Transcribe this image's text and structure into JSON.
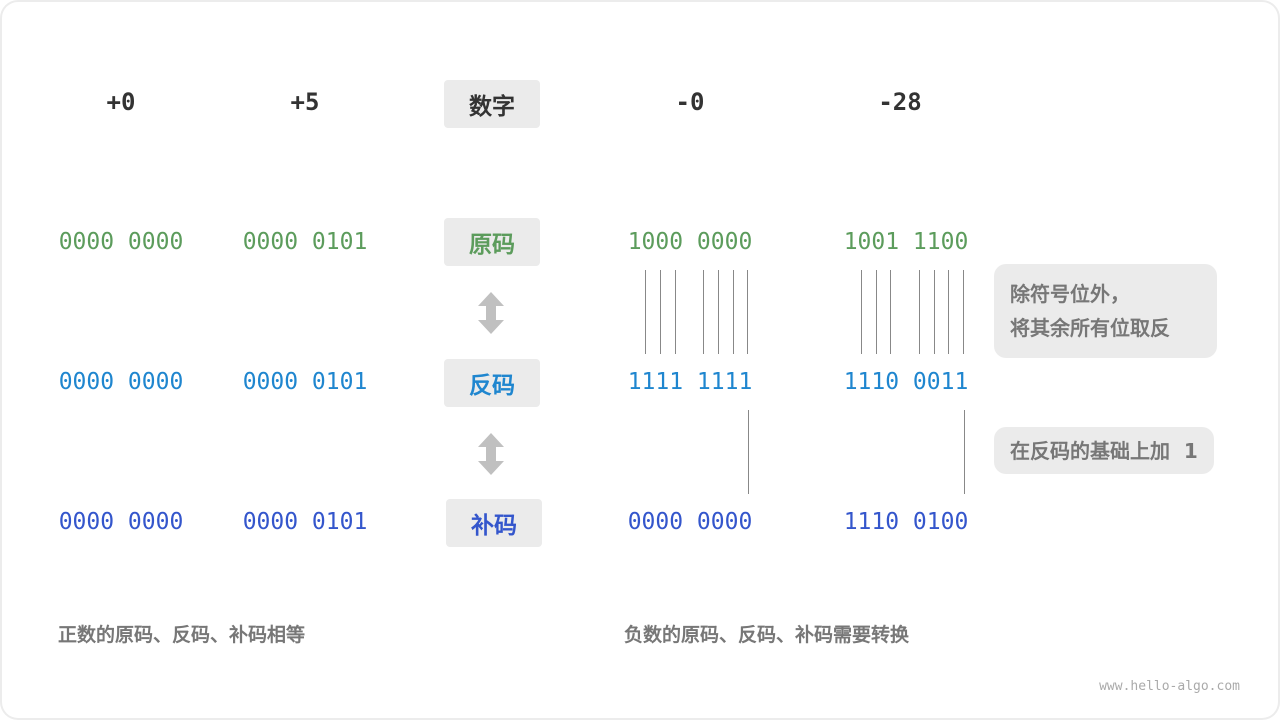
{
  "headers": [
    "+0",
    "+5",
    "数字",
    "-0",
    "-28"
  ],
  "labels": {
    "original": "原码",
    "ones": "反码",
    "twos": "补码"
  },
  "columns": [
    {
      "original": "0000 0000",
      "ones": "0000 0000",
      "twos": "0000 0000"
    },
    {
      "original": "0000 0101",
      "ones": "0000 0101",
      "twos": "0000 0101"
    },
    {
      "original": "1000 0000",
      "ones": "1111 1111",
      "twos": "0000 0000"
    },
    {
      "original": "1001 1100",
      "ones": "1110 0011",
      "twos": "1110 0100"
    }
  ],
  "notes": {
    "invert_line1": "除符号位外，",
    "invert_line2": "将其余所有位取反",
    "add_one": "在反码的基础上加  1"
  },
  "captions": {
    "positive": "正数的原码、反码、补码相等",
    "negative": "负数的原码、反码、补码需要转换"
  },
  "watermark": "www.hello-algo.com",
  "colors": {
    "original": "#5c9c5c",
    "ones": "#1f86cf",
    "twos": "#3456cc"
  }
}
